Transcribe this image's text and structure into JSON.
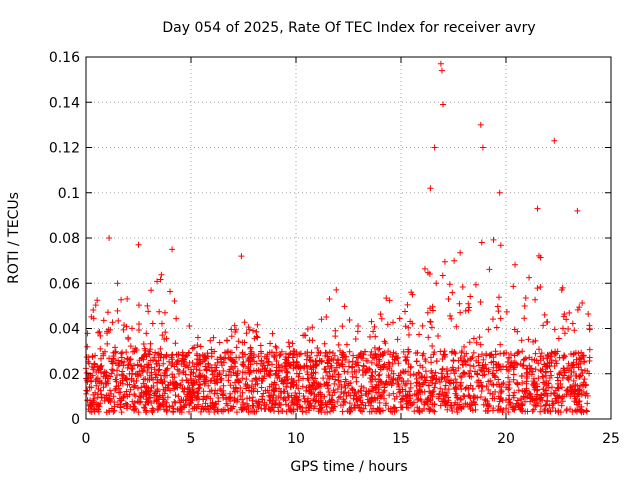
{
  "chart_data": {
    "type": "scatter",
    "title": "Day 054 of 2025, Rate Of TEC Index for receiver avry",
    "xlabel": "GPS time / hours",
    "ylabel": "ROTI / TECUs",
    "xlim": [
      0,
      25
    ],
    "ylim": [
      0,
      0.16
    ],
    "x_ticks": [
      0,
      5,
      10,
      15,
      20,
      25
    ],
    "x_tick_labels": [
      "0",
      "5",
      "10",
      "15",
      "20",
      "25"
    ],
    "y_ticks": [
      0,
      0.02,
      0.04,
      0.06,
      0.08,
      0.1,
      0.12,
      0.14,
      0.16
    ],
    "y_tick_labels": [
      "0",
      "0.02",
      "0.04",
      "0.06",
      "0.08",
      "0.1",
      "0.12",
      "0.14",
      "0.16"
    ],
    "grid": true,
    "marker": "+",
    "series": [
      {
        "name": "ROTI",
        "color": "#ff0000",
        "x_range": [
          0,
          24
        ],
        "baseline_range": [
          0.003,
          0.03
        ],
        "notable_points": [
          {
            "x": 1.1,
            "y": 0.08
          },
          {
            "x": 2.5,
            "y": 0.077
          },
          {
            "x": 4.1,
            "y": 0.075
          },
          {
            "x": 7.4,
            "y": 0.072
          },
          {
            "x": 16.4,
            "y": 0.102
          },
          {
            "x": 16.6,
            "y": 0.12
          },
          {
            "x": 16.9,
            "y": 0.157
          },
          {
            "x": 16.95,
            "y": 0.154
          },
          {
            "x": 17.0,
            "y": 0.139
          },
          {
            "x": 18.8,
            "y": 0.13
          },
          {
            "x": 18.9,
            "y": 0.12
          },
          {
            "x": 19.7,
            "y": 0.1
          },
          {
            "x": 21.5,
            "y": 0.093
          },
          {
            "x": 22.3,
            "y": 0.123
          },
          {
            "x": 23.4,
            "y": 0.092
          }
        ],
        "activity_profile": [
          {
            "x": 0.3,
            "peak": 0.05
          },
          {
            "x": 1.0,
            "peak": 0.065
          },
          {
            "x": 1.5,
            "peak": 0.06
          },
          {
            "x": 2.5,
            "peak": 0.06
          },
          {
            "x": 3.5,
            "peak": 0.065
          },
          {
            "x": 4.2,
            "peak": 0.06
          },
          {
            "x": 5.0,
            "peak": 0.04
          },
          {
            "x": 6.5,
            "peak": 0.035
          },
          {
            "x": 7.3,
            "peak": 0.045
          },
          {
            "x": 8.3,
            "peak": 0.045
          },
          {
            "x": 9.5,
            "peak": 0.035
          },
          {
            "x": 11.0,
            "peak": 0.045
          },
          {
            "x": 12.1,
            "peak": 0.06
          },
          {
            "x": 13.0,
            "peak": 0.045
          },
          {
            "x": 14.0,
            "peak": 0.055
          },
          {
            "x": 15.2,
            "peak": 0.05
          },
          {
            "x": 16.0,
            "peak": 0.07
          },
          {
            "x": 17.3,
            "peak": 0.07
          },
          {
            "x": 18.0,
            "peak": 0.075
          },
          {
            "x": 19.0,
            "peak": 0.085
          },
          {
            "x": 20.5,
            "peak": 0.07
          },
          {
            "x": 21.5,
            "peak": 0.075
          },
          {
            "x": 22.3,
            "peak": 0.07
          },
          {
            "x": 23.0,
            "peak": 0.05
          },
          {
            "x": 24.0,
            "peak": 0.055
          }
        ]
      }
    ]
  }
}
